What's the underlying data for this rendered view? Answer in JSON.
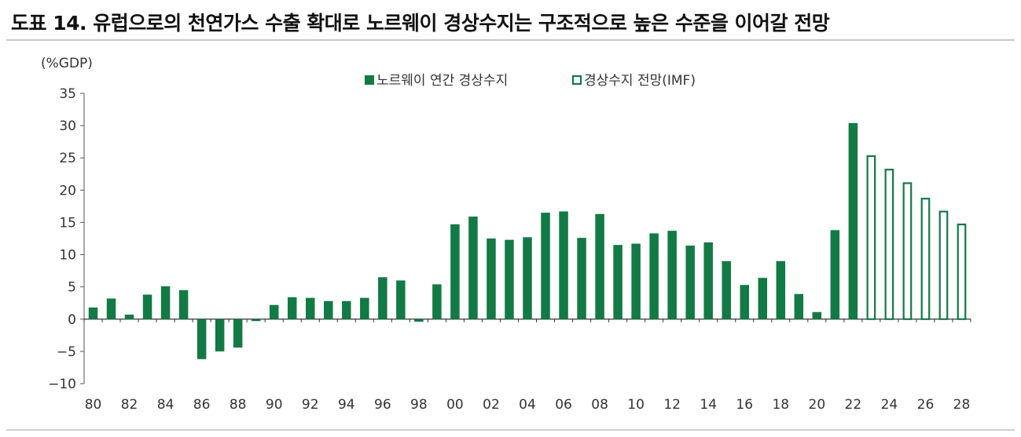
{
  "title": "도표 14. 유럽으로의 천연가스 수출 확대로 노르웨이 경상수지는 구조적으로 높은 수준을 이어갈 전망",
  "colors": {
    "bar": "#127a45",
    "projection_outline": "#127a45",
    "axis": "#555555"
  },
  "chart_data": {
    "type": "bar",
    "ylabel": "(%GDP)",
    "ylim": [
      -10,
      35
    ],
    "yticks": [
      35,
      30,
      25,
      20,
      15,
      10,
      5,
      0,
      -5,
      -10
    ],
    "ytick_labels": [
      "35",
      "30",
      "25",
      "20",
      "15",
      "10",
      "5",
      "0",
      "−5",
      "−10"
    ],
    "xtick_labels": [
      "80",
      "82",
      "84",
      "86",
      "88",
      "90",
      "92",
      "94",
      "96",
      "98",
      "00",
      "02",
      "04",
      "06",
      "08",
      "10",
      "12",
      "14",
      "16",
      "18",
      "20",
      "22",
      "24",
      "26",
      "28"
    ],
    "legend": {
      "position": "top-center"
    },
    "grid": false,
    "series": [
      {
        "name": "노르웨이 연간 경상수지",
        "style": "filled",
        "years": [
          1980,
          1981,
          1982,
          1983,
          1984,
          1985,
          1986,
          1987,
          1988,
          1989,
          1990,
          1991,
          1992,
          1993,
          1994,
          1995,
          1996,
          1997,
          1998,
          1999,
          2000,
          2001,
          2002,
          2003,
          2004,
          2005,
          2006,
          2007,
          2008,
          2009,
          2010,
          2011,
          2012,
          2013,
          2014,
          2015,
          2016,
          2017,
          2018,
          2019,
          2020,
          2021,
          2022
        ],
        "values": [
          1.8,
          3.2,
          0.7,
          3.8,
          5.1,
          4.5,
          -6.2,
          -5.0,
          -4.4,
          -0.3,
          2.2,
          3.4,
          3.3,
          2.8,
          2.8,
          3.3,
          6.5,
          6.0,
          -0.4,
          5.4,
          14.7,
          15.9,
          12.5,
          12.3,
          12.7,
          16.5,
          16.7,
          12.6,
          16.3,
          11.5,
          11.7,
          13.3,
          13.7,
          11.4,
          11.9,
          9.0,
          5.3,
          6.4,
          9.0,
          3.9,
          1.1,
          13.8,
          30.4
        ]
      },
      {
        "name": "경상수지 전망(IMF)",
        "style": "outline",
        "years": [
          2023,
          2024,
          2025,
          2026,
          2027,
          2028
        ],
        "values": [
          25.4,
          23.3,
          21.2,
          18.8,
          16.8,
          14.8
        ]
      }
    ]
  }
}
